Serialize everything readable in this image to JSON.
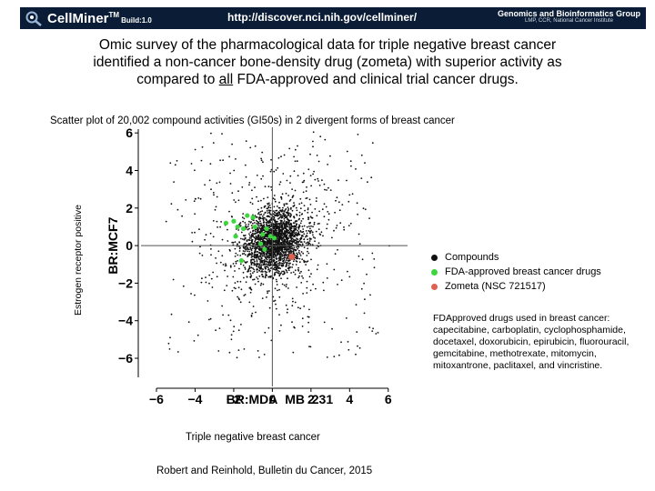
{
  "banner": {
    "app_name": "CellMiner",
    "trademark": "TM",
    "build": "Build:1.0",
    "url": "http://discover.nci.nih.gov/cellminer/",
    "org_name": "Genomics and Bioinformatics Group",
    "org_sub": "LMP, CCR, National Cancer Institute",
    "logo_icon": "magnifier-cell-icon"
  },
  "headline": {
    "line1": "Omic survey of the pharmacological data for triple negative breast cancer",
    "line2": "identified a non-cancer bone-density drug (zometa) with superior activity as",
    "line3_pre": "compared to ",
    "line3_u": "all",
    "line3_post": " FDA-approved and clinical trial cancer drugs."
  },
  "plot_title": "Scatter plot of 20,002 compound activities (GI50s) in 2 divergent forms of breast cancer",
  "y_desc": "Estrogen receptor positive",
  "x_desc": "Triple negative breast cancer",
  "citation": "Robert and Reinhold, Bulletin du Cancer, 2015",
  "fda_note": "FDApproved drugs used in breast cancer: capecitabine, carboplatin, cyclophosphamide, docetaxel, doxorubicin, epirubicin, fluorouracil, gemcitabine, methotrexate, mitomycin, mitoxantrone, paclitaxel, and vincristine.",
  "chart_data": {
    "type": "scatter",
    "title": "Scatter plot of 20,002 compound activities (GI50s) in 2 divergent forms of breast cancer",
    "xlabel": "BR:MDA_MB_231",
    "ylabel": "BR:MCF7",
    "xlim": [
      -6.8,
      7.0
    ],
    "ylim": [
      -7.5,
      6.3
    ],
    "xticks": [
      -6,
      -4,
      -2,
      0,
      2,
      4,
      6
    ],
    "yticks": [
      -6,
      -4,
      -2,
      0,
      2,
      4,
      6
    ],
    "xtick_labels": [
      "−6",
      "−4",
      "−2",
      "0",
      "2",
      "4",
      "6"
    ],
    "ytick_labels": [
      "−6",
      "−4",
      "−2",
      "0",
      "2",
      "4",
      "6"
    ],
    "reference_lines": {
      "x": 0,
      "y": 0
    },
    "legend": [
      {
        "label": "Compounds",
        "color": "#111111"
      },
      {
        "label": "FDA-approved breast cancer drugs",
        "color": "#3ed63e"
      },
      {
        "label": "Zometa (NSC 721517)",
        "color": "#e06050"
      }
    ],
    "series": [
      {
        "name": "FDA-approved breast cancer drugs",
        "color": "#3ed63e",
        "points": [
          [
            -2.4,
            1.2
          ],
          [
            -2.0,
            1.3
          ],
          [
            -1.8,
            1.0
          ],
          [
            -1.5,
            0.9
          ],
          [
            -1.3,
            1.6
          ],
          [
            -1.0,
            1.5
          ],
          [
            -1.9,
            0.5
          ],
          [
            -0.9,
            1.0
          ],
          [
            -0.5,
            0.6
          ],
          [
            -0.3,
            0.9
          ],
          [
            -0.1,
            0.5
          ],
          [
            0.1,
            0.4
          ],
          [
            -0.6,
            0.1
          ],
          [
            -0.4,
            -0.2
          ],
          [
            -1.6,
            -0.8
          ]
        ]
      },
      {
        "name": "Zometa (NSC 721517)",
        "color": "#e06050",
        "points": [
          [
            1.0,
            -0.6
          ]
        ]
      }
    ]
  }
}
